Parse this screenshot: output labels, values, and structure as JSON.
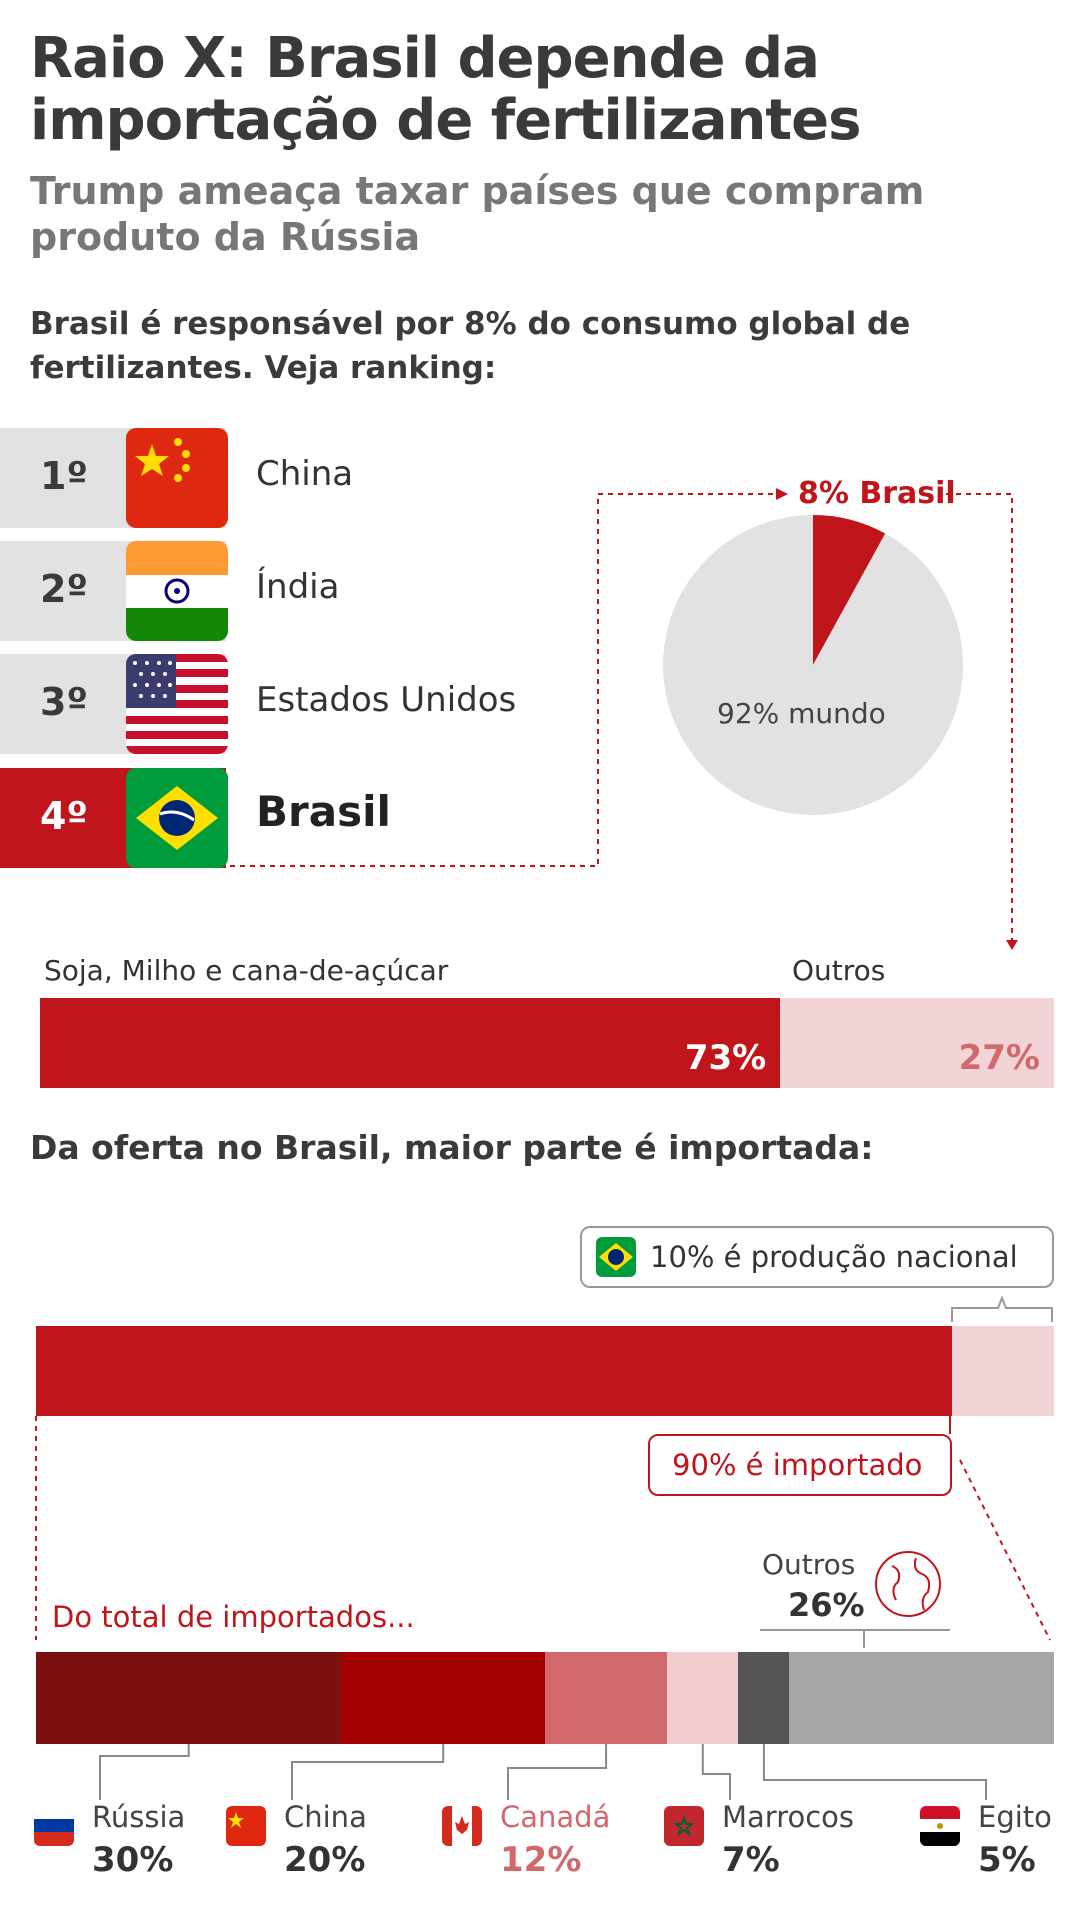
{
  "header": {
    "title": "Raio X: Brasil depende da importação de fertilizantes",
    "subtitle": "Trump ameaça taxar países que compram produto da Rússia"
  },
  "ranking_section": {
    "lead": "Brasil é responsável por 8% do consumo global de fertilizantes. Veja ranking:",
    "items": [
      {
        "rank": "1º",
        "country": "China",
        "flag": "china-flag-icon"
      },
      {
        "rank": "2º",
        "country": "Índia",
        "flag": "india-flag-icon"
      },
      {
        "rank": "3º",
        "country": "Estados Unidos",
        "flag": "usa-flag-icon"
      },
      {
        "rank": "4º",
        "country": "Brasil",
        "flag": "brazil-flag-icon"
      }
    ]
  },
  "colors": {
    "red": "#c0161b",
    "pink": "#f2d4d6",
    "dark_red": "#7c0f0f",
    "mid_red": "#a30000",
    "rose": "#d0686c",
    "light_rose": "#f2cdd0",
    "dark_gray": "#555555",
    "gray": "#a6a6a6",
    "pie_gray": "#e2e2e2"
  },
  "chart_data": [
    {
      "type": "pie",
      "slices": [
        {
          "label": "8% Brasil",
          "value": 8
        },
        {
          "label": "92% mundo",
          "value": 92
        }
      ]
    },
    {
      "type": "bar",
      "orientation": "horizontal-stacked",
      "segments": [
        {
          "label": "Soja, Milho e cana-de-açúcar",
          "value": 73,
          "value_label": "73%"
        },
        {
          "label": "Outros",
          "value": 27,
          "value_label": "27%"
        }
      ]
    },
    {
      "type": "bar",
      "orientation": "horizontal-stacked",
      "title": "Da oferta no Brasil, maior parte é importada:",
      "segments": [
        {
          "label": "90% é importado",
          "value": 90
        },
        {
          "label": "10% é produção nacional",
          "value": 10
        }
      ]
    },
    {
      "type": "bar",
      "orientation": "horizontal-stacked",
      "title": "Do total de importados...",
      "segments": [
        {
          "label": "Rússia",
          "value": 30,
          "value_label": "30%",
          "flag": "russia-flag-icon"
        },
        {
          "label": "China",
          "value": 20,
          "value_label": "20%",
          "flag": "china-flag-icon"
        },
        {
          "label": "Canadá",
          "value": 12,
          "value_label": "12%",
          "flag": "canada-flag-icon"
        },
        {
          "label": "Marrocos",
          "value": 7,
          "value_label": "7%",
          "flag": "morocco-flag-icon"
        },
        {
          "label": "Egito",
          "value": 5,
          "value_label": "5%",
          "flag": "egypt-flag-icon"
        },
        {
          "label": "Outros",
          "value": 26,
          "value_label": "26%",
          "icon": "globe-icon"
        }
      ]
    }
  ]
}
